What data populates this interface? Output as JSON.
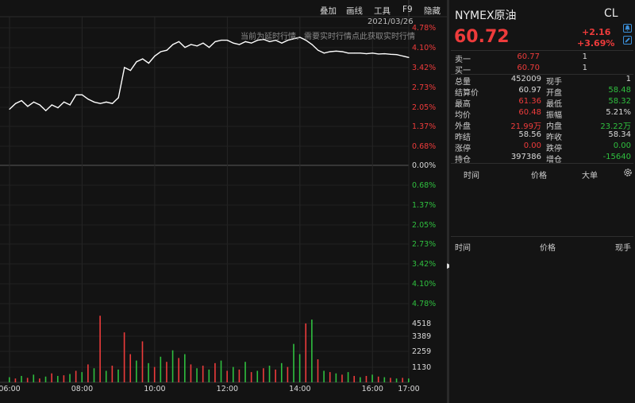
{
  "toolbar": {
    "items": [
      "叠加",
      "画线",
      "工具",
      "F9",
      "隐藏"
    ],
    "date": "2021/03/26",
    "notice": "当前为延时行情，需要实时行情点此获取实时行情"
  },
  "chart_data": [
    {
      "type": "line",
      "title": "",
      "x_ticks": [
        "06:00",
        "08:00",
        "10:00",
        "12:00",
        "14:00",
        "16:00",
        "17:00"
      ],
      "y_right_ticks_up": [
        "4.78%",
        "4.10%",
        "3.42%",
        "2.73%",
        "2.05%",
        "1.37%",
        "0.68%"
      ],
      "y_center": "0.00%",
      "y_right_ticks_down": [
        "0.68%",
        "1.37%",
        "2.05%",
        "2.73%",
        "3.42%",
        "4.10%",
        "4.78%"
      ],
      "ylim_percent": [
        -4.78,
        4.78
      ],
      "series": [
        {
          "x": [
            "06:00",
            "06:10",
            "06:20",
            "06:30",
            "06:40",
            "06:50",
            "07:00",
            "07:10",
            "07:20",
            "07:30",
            "07:40",
            "07:50",
            "08:00",
            "08:10",
            "08:20",
            "08:30",
            "08:40",
            "08:50",
            "09:00",
            "09:10",
            "09:20",
            "09:30",
            "09:40",
            "09:50",
            "10:00",
            "10:10",
            "10:20",
            "10:30",
            "10:40",
            "10:50",
            "11:00",
            "11:10",
            "11:20",
            "11:30",
            "11:40",
            "11:50",
            "12:00",
            "12:10",
            "12:20",
            "12:30",
            "12:40",
            "12:50",
            "13:00",
            "13:10",
            "13:20",
            "13:30",
            "13:40",
            "13:50",
            "14:00",
            "14:10",
            "14:20",
            "14:30",
            "14:40",
            "14:50",
            "15:00",
            "15:10",
            "15:20",
            "15:30",
            "15:40",
            "15:50",
            "16:00",
            "16:10",
            "16:20",
            "16:30",
            "16:40",
            "16:50",
            "17:00"
          ],
          "values": [
            1.95,
            2.15,
            2.25,
            2.05,
            2.2,
            2.1,
            1.9,
            2.1,
            2.0,
            2.2,
            2.1,
            2.45,
            2.45,
            2.3,
            2.2,
            2.15,
            2.2,
            2.15,
            2.35,
            3.4,
            3.3,
            3.6,
            3.7,
            3.55,
            3.8,
            3.95,
            4.0,
            4.2,
            4.3,
            4.1,
            4.2,
            4.15,
            4.25,
            4.1,
            4.3,
            4.35,
            4.35,
            4.25,
            4.2,
            4.3,
            4.25,
            4.35,
            4.38,
            4.3,
            4.35,
            4.25,
            4.35,
            4.4,
            4.45,
            4.35,
            4.2,
            4.0,
            3.9,
            3.95,
            3.97,
            3.95,
            3.9,
            3.9,
            3.9,
            3.88,
            3.9,
            3.87,
            3.88,
            3.86,
            3.85,
            3.8,
            3.75
          ]
        }
      ]
    },
    {
      "type": "bar",
      "title": "",
      "y_ticks": [
        "4518",
        "3389",
        "2259",
        "1130"
      ],
      "ylim": [
        0,
        5648
      ],
      "x": [
        "06:00",
        "06:10",
        "06:20",
        "06:30",
        "06:40",
        "06:50",
        "07:00",
        "07:10",
        "07:20",
        "07:30",
        "07:40",
        "07:50",
        "08:00",
        "08:10",
        "08:20",
        "08:30",
        "08:40",
        "08:50",
        "09:00",
        "09:10",
        "09:20",
        "09:30",
        "09:40",
        "09:50",
        "10:00",
        "10:10",
        "10:20",
        "10:30",
        "10:40",
        "10:50",
        "11:00",
        "11:10",
        "11:20",
        "11:30",
        "11:40",
        "11:50",
        "12:00",
        "12:10",
        "12:20",
        "12:30",
        "12:40",
        "12:50",
        "13:00",
        "13:10",
        "13:20",
        "13:30",
        "13:40",
        "13:50",
        "14:00",
        "14:10",
        "14:20",
        "14:30",
        "14:40",
        "14:50",
        "15:00",
        "15:10",
        "15:20",
        "15:30",
        "15:40",
        "15:50",
        "16:00",
        "16:10",
        "16:20",
        "16:30",
        "16:40",
        "16:50",
        "17:00"
      ],
      "values": [
        400,
        300,
        500,
        350,
        600,
        300,
        450,
        700,
        500,
        550,
        650,
        900,
        800,
        1400,
        1100,
        5200,
        900,
        1300,
        1000,
        3900,
        2200,
        1700,
        3200,
        1500,
        1200,
        2000,
        1600,
        2500,
        1900,
        2200,
        1400,
        1100,
        1300,
        1000,
        1500,
        1700,
        900,
        1200,
        1000,
        1600,
        800,
        900,
        1100,
        1300,
        1000,
        1500,
        1200,
        3000,
        2200,
        4600,
        4900,
        1800,
        900,
        800,
        700,
        600,
        800,
        500,
        400,
        500,
        600,
        450,
        400,
        350,
        300,
        350,
        300
      ],
      "colors": [
        "#2fbf3f",
        "#ee3b3b",
        "#2fbf3f",
        "#ee3b3b",
        "#2fbf3f",
        "#ee3b3b",
        "#2fbf3f",
        "#ee3b3b",
        "#2fbf3f",
        "#ee3b3b",
        "#2fbf3f",
        "#ee3b3b",
        "#2fbf3f",
        "#ee3b3b",
        "#2fbf3f",
        "#ee3b3b",
        "#2fbf3f",
        "#ee3b3b",
        "#2fbf3f",
        "#ee3b3b",
        "#ee3b3b",
        "#2fbf3f",
        "#ee3b3b",
        "#2fbf3f",
        "#ee3b3b",
        "#2fbf3f",
        "#ee3b3b",
        "#2fbf3f",
        "#ee3b3b",
        "#2fbf3f",
        "#ee3b3b",
        "#2fbf3f",
        "#ee3b3b",
        "#2fbf3f",
        "#ee3b3b",
        "#2fbf3f",
        "#ee3b3b",
        "#2fbf3f",
        "#ee3b3b",
        "#2fbf3f",
        "#ee3b3b",
        "#2fbf3f",
        "#ee3b3b",
        "#2fbf3f",
        "#ee3b3b",
        "#2fbf3f",
        "#ee3b3b",
        "#2fbf3f",
        "#2fbf3f",
        "#ee3b3b",
        "#2fbf3f",
        "#ee3b3b",
        "#2fbf3f",
        "#ee3b3b",
        "#2fbf3f",
        "#ee3b3b",
        "#2fbf3f",
        "#ee3b3b",
        "#2fbf3f",
        "#ee3b3b",
        "#2fbf3f",
        "#ee3b3b",
        "#2fbf3f",
        "#ee3b3b",
        "#2fbf3f",
        "#ee3b3b",
        "#2fbf3f"
      ]
    }
  ],
  "panel": {
    "name": "NYMEX原油",
    "code": "CL",
    "price": "60.72",
    "change": "+2.16",
    "change_pct": "+3.69%",
    "order_book": [
      {
        "label": "卖一",
        "price": "60.77",
        "qty": "1"
      },
      {
        "label": "买一",
        "price": "60.70",
        "qty": "1"
      }
    ],
    "stats": [
      {
        "l1": "总量",
        "v1": "452009",
        "c1": "white",
        "l2": "现手",
        "v2": "1",
        "c2": "white"
      },
      {
        "l1": "结算价",
        "v1": "60.97",
        "c1": "white",
        "l2": "开盘",
        "v2": "58.48",
        "c2": "green"
      },
      {
        "l1": "最高",
        "v1": "61.36",
        "c1": "red",
        "l2": "最低",
        "v2": "58.32",
        "c2": "green"
      },
      {
        "l1": "均价",
        "v1": "60.48",
        "c1": "red",
        "l2": "振幅",
        "v2": "5.21%",
        "c2": "white"
      },
      {
        "l1": "外盘",
        "v1": "21.99万",
        "c1": "red",
        "l2": "内盘",
        "v2": "23.22万",
        "c2": "green"
      },
      {
        "l1": "昨结",
        "v1": "58.56",
        "c1": "white",
        "l2": "昨收",
        "v2": "58.34",
        "c2": "white"
      },
      {
        "l1": "涨停",
        "v1": "0.00",
        "c1": "red",
        "l2": "跌停",
        "v2": "0.00",
        "c2": "green"
      },
      {
        "l1": "持仓",
        "v1": "397386",
        "c1": "white",
        "l2": "增仓",
        "v2": "-15640",
        "c2": "green"
      }
    ],
    "trades_headers": [
      "时间",
      "价格",
      "大单"
    ],
    "ticks_headers": [
      "时间",
      "价格",
      "现手"
    ]
  },
  "icons": {
    "bell": "bell-icon",
    "edit": "edit-icon",
    "settings": "gear-icon",
    "arrow": "collapse-arrow-icon"
  }
}
